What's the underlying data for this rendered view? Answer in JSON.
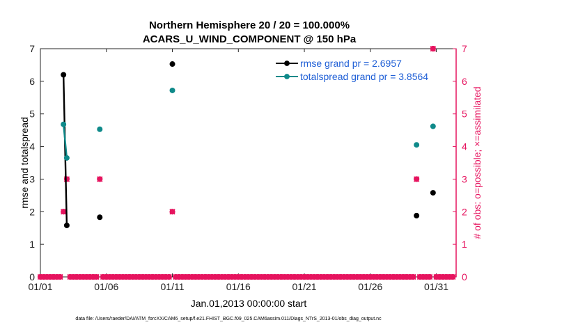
{
  "chart_data": {
    "type": "scatter",
    "title_line1": "Northern Hemisphere 20 / 20 = 100.000%",
    "title_line2": "ACARS_U_WIND_COMPONENT @ 150 hPa",
    "xlabel": "Jan.01,2013 00:00:00 start",
    "ylabel_left": "rmse and totalspread",
    "ylabel_right": "# of obs: o=possible; ×=assimilated",
    "footnote": "data file: /Users/raeder/DAI/ATM_forcXX/CAM6_setup/f.e21.FHIST_BGC.f09_025.CAM6assim.011/Diags_NTrS_2013-01/obs_diag_output.nc",
    "xlim": [
      0,
      31.5
    ],
    "x_ticks": [
      {
        "x": 0,
        "label": "01/01"
      },
      {
        "x": 5,
        "label": "01/06"
      },
      {
        "x": 10,
        "label": "01/11"
      },
      {
        "x": 15,
        "label": "01/16"
      },
      {
        "x": 20,
        "label": "01/21"
      },
      {
        "x": 25,
        "label": "01/26"
      },
      {
        "x": 30,
        "label": "01/31"
      }
    ],
    "ylim_left": [
      0,
      7
    ],
    "ylim_right": [
      0,
      7
    ],
    "y_ticks_left": [
      "0",
      "1",
      "2",
      "3",
      "4",
      "5",
      "6",
      "7"
    ],
    "y_ticks_right": [
      "0",
      "1",
      "2",
      "3",
      "4",
      "5",
      "6",
      "7"
    ],
    "colors": {
      "rmse": "#000000",
      "spread": "#0f8a8a",
      "obs": "#e6145f",
      "legend_text": "#1f5fd6"
    },
    "series": [
      {
        "name": "rmse grand pr = 2.6957",
        "key": "rmse",
        "points": [
          [
            1.75,
            6.2
          ],
          [
            2.0,
            1.58
          ],
          [
            4.5,
            1.83
          ],
          [
            10.0,
            6.53
          ],
          [
            28.5,
            1.88
          ],
          [
            29.75,
            2.58
          ]
        ],
        "segments": [
          [
            [
              1.75,
              6.2
            ],
            [
              2.0,
              1.58
            ]
          ]
        ]
      },
      {
        "name": "totalspread grand pr = 3.8564",
        "key": "spread",
        "points": [
          [
            1.75,
            4.68
          ],
          [
            2.0,
            3.65
          ],
          [
            4.5,
            4.53
          ],
          [
            10.0,
            5.72
          ],
          [
            28.5,
            4.05
          ],
          [
            29.75,
            4.62
          ]
        ],
        "segments": [
          [
            [
              1.75,
              4.68
            ],
            [
              2.0,
              3.65
            ]
          ]
        ]
      }
    ],
    "obs_possible": {
      "name": "possible",
      "x_start": 0,
      "x_step": 0.25,
      "count": 126,
      "nonzero": [
        [
          1.75,
          2
        ],
        [
          2.0,
          3
        ],
        [
          4.5,
          3
        ],
        [
          10.0,
          2
        ],
        [
          28.5,
          3
        ],
        [
          29.75,
          7
        ]
      ]
    },
    "obs_assimilated": {
      "name": "assimilated",
      "x_start": 0,
      "x_step": 0.25,
      "count": 126,
      "nonzero": [
        [
          1.75,
          2
        ],
        [
          2.0,
          3
        ],
        [
          4.5,
          3
        ],
        [
          10.0,
          2
        ],
        [
          28.5,
          3
        ],
        [
          29.75,
          7
        ]
      ]
    }
  }
}
